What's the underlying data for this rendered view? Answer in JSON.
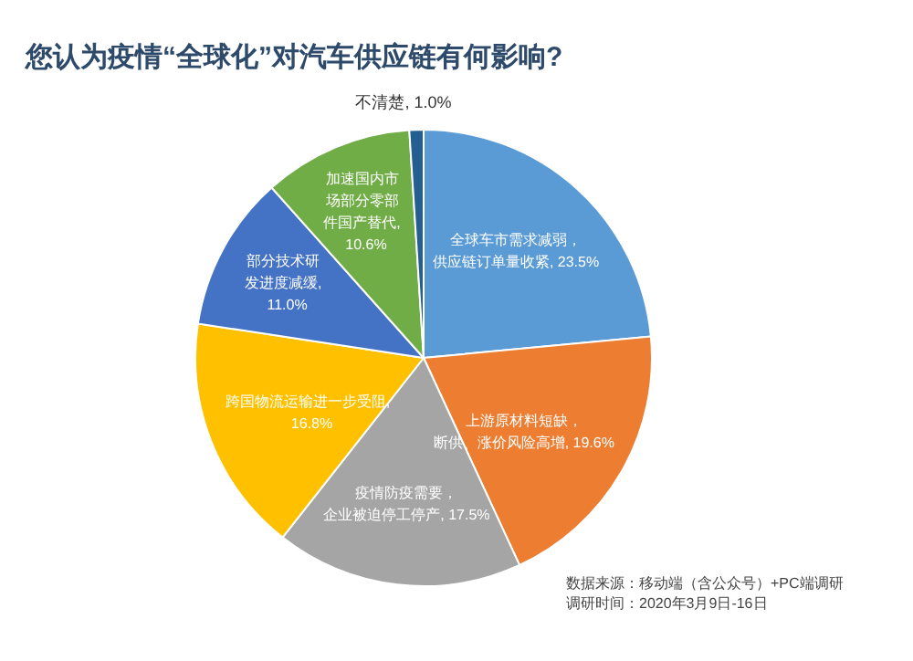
{
  "chart_data": {
    "type": "pie",
    "title": "您认为疫情“全球化”对汽车供应链有何影响?",
    "categories": [
      "全球车市需求减弱，供应链订单量收紧",
      "上游原材料短缺，断供、涨价风险高增",
      "疫情防疫需要，企业被迫停工停产",
      "跨国物流运输进一步受阻",
      "部分技术研发进度减缓",
      "加速国内市场部分零部件国产替代",
      "不清楚"
    ],
    "value_labels": [
      ", 23.5%",
      ", 19.6%",
      ", 17.5%",
      ", 16.8%",
      ", 11.0%",
      ", 10.6%",
      ", 1.0%"
    ],
    "values": [
      23.5,
      19.6,
      17.5,
      16.8,
      11.0,
      10.6,
      1.0
    ],
    "colors": [
      "#5b9bd5",
      "#ed7d31",
      "#a5a5a5",
      "#ffc000",
      "#4472c4",
      "#70ad47",
      "#255e91"
    ],
    "annotations": [
      "数据来源：移动端（含公众号）+PC端调研",
      "调研时间：2020年3月9日-16日"
    ]
  }
}
